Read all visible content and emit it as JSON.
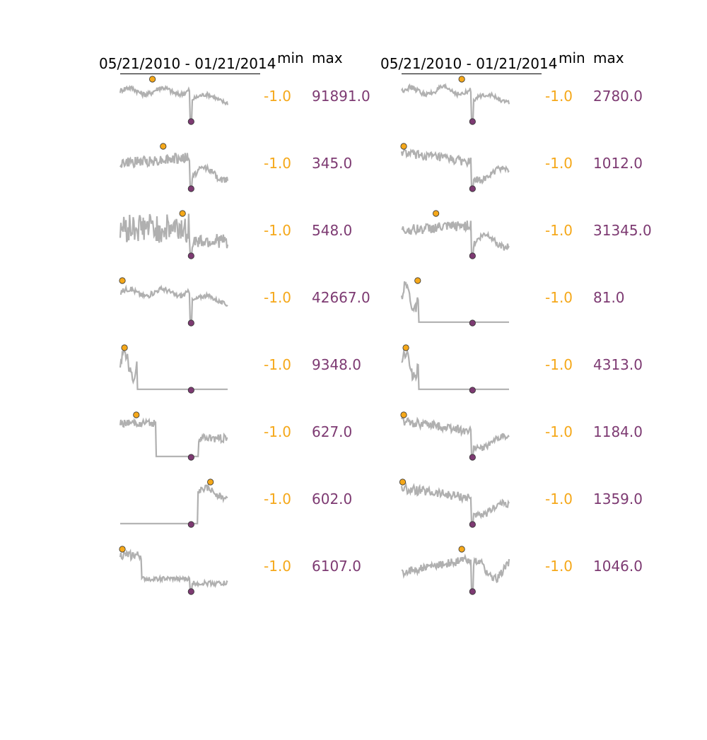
{
  "chart_data": [
    {
      "type": "line",
      "date_range": "05/21/2010 - 01/21/2014",
      "min_header": "min",
      "max_header": "max",
      "line_color": "#b0b0b0",
      "max_marker_color": "#f5a81a",
      "min_marker_color": "#7d3a72",
      "rows": [
        {
          "min_label": "-1.0",
          "max_label": "91891.0",
          "shape": "A",
          "max_at": 0.3,
          "min_at": 0.66,
          "base": 0.3
        },
        {
          "min_label": "-1.0",
          "max_label": "345.0",
          "shape": "B",
          "max_at": 0.4,
          "min_at": 0.66,
          "base": 0.3
        },
        {
          "min_label": "-1.0",
          "max_label": "548.0",
          "shape": "C",
          "max_at": 0.58,
          "min_at": 0.66,
          "base": 0.3
        },
        {
          "min_label": "-1.0",
          "max_label": "42667.0",
          "shape": "A",
          "max_at": 0.02,
          "min_at": 0.66,
          "base": 0.28
        },
        {
          "min_label": "-1.0",
          "max_label": "9348.0",
          "shape": "D",
          "max_at": 0.04,
          "min_at": 0.66,
          "base": 0.0
        },
        {
          "min_label": "-1.0",
          "max_label": "627.0",
          "shape": "E",
          "max_at": 0.15,
          "min_at": 0.66,
          "base": 0.0
        },
        {
          "min_label": "-1.0",
          "max_label": "602.0",
          "shape": "F",
          "max_at": 0.84,
          "min_at": 0.66,
          "base": 0.0
        },
        {
          "min_label": "-1.0",
          "max_label": "6107.0",
          "shape": "G",
          "max_at": 0.02,
          "min_at": 0.66,
          "base": 0.2
        }
      ]
    },
    {
      "type": "line",
      "date_range": "05/21/2010 - 01/21/2014",
      "min_header": "min",
      "max_header": "max",
      "line_color": "#b0b0b0",
      "max_marker_color": "#f5a81a",
      "min_marker_color": "#7d3a72",
      "rows": [
        {
          "min_label": "-1.0",
          "max_label": "2780.0",
          "shape": "A",
          "max_at": 0.56,
          "min_at": 0.66,
          "base": 0.3
        },
        {
          "min_label": "-1.0",
          "max_label": "1012.0",
          "shape": "H",
          "max_at": 0.02,
          "min_at": 0.66,
          "base": 0.3
        },
        {
          "min_label": "-1.0",
          "max_label": "31345.0",
          "shape": "B",
          "max_at": 0.32,
          "min_at": 0.66,
          "base": 0.32
        },
        {
          "min_label": "-1.0",
          "max_label": "81.0",
          "shape": "D",
          "max_at": 0.15,
          "min_at": 0.66,
          "base": 0.0
        },
        {
          "min_label": "-1.0",
          "max_label": "4313.0",
          "shape": "D",
          "max_at": 0.04,
          "min_at": 0.66,
          "base": 0.0
        },
        {
          "min_label": "-1.0",
          "max_label": "1184.0",
          "shape": "H",
          "max_at": 0.02,
          "min_at": 0.66,
          "base": 0.3
        },
        {
          "min_label": "-1.0",
          "max_label": "1359.0",
          "shape": "H",
          "max_at": 0.01,
          "min_at": 0.66,
          "base": 0.3
        },
        {
          "min_label": "-1.0",
          "max_label": "1046.0",
          "shape": "I",
          "max_at": 0.56,
          "min_at": 0.66,
          "base": 0.3
        }
      ]
    }
  ]
}
